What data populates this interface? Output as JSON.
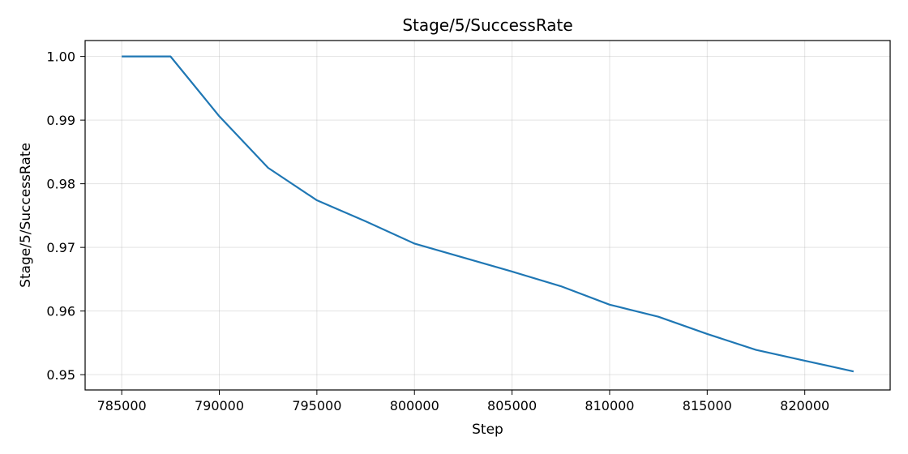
{
  "chart_data": {
    "type": "line",
    "title": "Stage/5/SuccessRate",
    "xlabel": "Step",
    "ylabel": "Stage/5/SuccessRate",
    "xlim": [
      783125,
      824375
    ],
    "ylim": [
      0.9476,
      1.0025
    ],
    "x_ticks": [
      785000,
      790000,
      795000,
      800000,
      805000,
      810000,
      815000,
      820000
    ],
    "x_tick_labels": [
      "785000",
      "790000",
      "795000",
      "800000",
      "805000",
      "810000",
      "815000",
      "820000"
    ],
    "y_ticks": [
      0.95,
      0.96,
      0.97,
      0.98,
      0.99,
      1.0
    ],
    "y_tick_labels": [
      "0.95",
      "0.96",
      "0.97",
      "0.98",
      "0.99",
      "1.00"
    ],
    "grid": true,
    "series": [
      {
        "color": "#1f77b4",
        "x": [
          785000,
          787500,
          790000,
          792500,
          795000,
          797500,
          800000,
          802500,
          805000,
          807500,
          810000,
          812500,
          815000,
          817500,
          820000,
          822500
        ],
        "y": [
          1.0,
          1.0,
          0.9906,
          0.9825,
          0.9774,
          0.9741,
          0.9706,
          0.9684,
          0.9662,
          0.9639,
          0.961,
          0.9591,
          0.9564,
          0.9539,
          0.9522,
          0.9505
        ]
      }
    ]
  }
}
